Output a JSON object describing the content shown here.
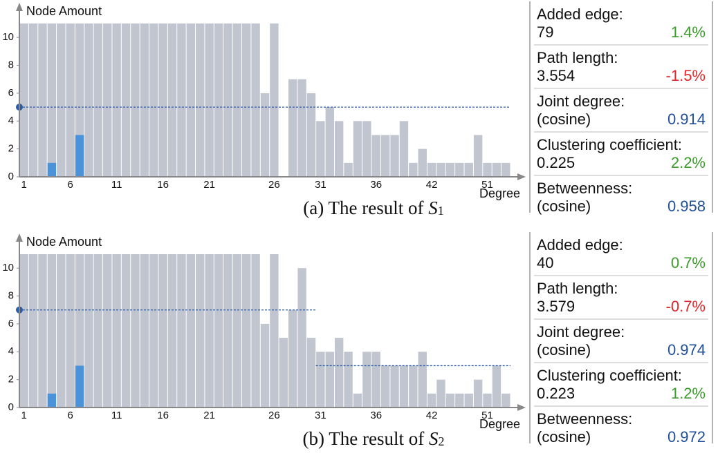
{
  "chart_data": [
    {
      "type": "bar",
      "y_label": "Node Amount",
      "x_label": "Degree",
      "caption": {
        "prefix": "(a) The result of ",
        "symbol": "S",
        "index": "1"
      },
      "categories": [
        "1",
        null,
        null,
        null,
        null,
        "6",
        null,
        null,
        null,
        null,
        "11",
        null,
        null,
        null,
        null,
        "16",
        null,
        null,
        null,
        null,
        "21",
        null,
        null,
        null,
        null,
        null,
        null,
        "26",
        null,
        null,
        null,
        null,
        "31",
        null,
        null,
        null,
        null,
        null,
        "36",
        null,
        null,
        null,
        null,
        null,
        "42",
        null,
        null,
        null,
        null,
        null,
        "51",
        null,
        null
      ],
      "series": [
        {
          "color": "#c1c5cf",
          "values": [
            11,
            11,
            11,
            11,
            11,
            11,
            11,
            11,
            11,
            11,
            11,
            11,
            11,
            11,
            11,
            11,
            11,
            11,
            11,
            11,
            11,
            11,
            11,
            11,
            11,
            11,
            6,
            11,
            0,
            7,
            7,
            6,
            4,
            5,
            4,
            1,
            4,
            4,
            3,
            3,
            3,
            4,
            1,
            2,
            1,
            1,
            1,
            1,
            1,
            3,
            1,
            1,
            1
          ]
        },
        {
          "color": "#4a92d9",
          "values": [
            null,
            null,
            null,
            1,
            null,
            null,
            3,
            null,
            null,
            null,
            null,
            null,
            null,
            null,
            null,
            null,
            null,
            null,
            null,
            null,
            null,
            null,
            null,
            null,
            null,
            null,
            null,
            null,
            null,
            null,
            null,
            null,
            null,
            null,
            null,
            null,
            null,
            null,
            null,
            null,
            null,
            null,
            null,
            null,
            null,
            null,
            null,
            null,
            null,
            null,
            null,
            null,
            null
          ]
        }
      ],
      "reference": {
        "color": "#2a5ca8",
        "values": [
          5,
          5,
          5,
          5,
          5,
          5,
          5,
          5,
          5,
          5,
          5,
          5,
          5,
          5,
          5,
          5,
          5,
          5,
          5,
          5,
          5,
          5,
          5,
          5,
          5,
          5,
          5,
          5,
          5,
          5,
          5,
          5,
          5,
          5,
          5,
          5,
          5,
          5,
          5,
          5,
          5,
          5,
          5,
          5,
          5,
          5,
          5,
          5,
          5,
          5,
          5,
          5,
          5
        ]
      },
      "ylim": [
        0,
        11
      ],
      "yticks": [
        0,
        2,
        4,
        6,
        8,
        10
      ],
      "metrics": [
        {
          "label": "Added edge:",
          "value": "79",
          "change": "1.4%",
          "color": "#3a9a2a"
        },
        {
          "label": "Path length:",
          "value": "3.554",
          "change": "-1.5%",
          "color": "#e0262a"
        },
        {
          "label": "Joint degree:",
          "value": "(cosine)",
          "change": "0.914",
          "color": "#1f4e9a"
        },
        {
          "label": "Clustering coefficient:",
          "value": "0.225",
          "change": "2.2%",
          "color": "#3a9a2a"
        },
        {
          "label": "Betweenness:",
          "value": "(cosine)",
          "change": "0.958",
          "color": "#1f4e9a"
        }
      ]
    },
    {
      "type": "bar",
      "y_label": "Node Amount",
      "x_label": "Degree",
      "caption": {
        "prefix": "(b) The result of ",
        "symbol": "S",
        "index": "2"
      },
      "categories": [
        "1",
        null,
        null,
        null,
        null,
        "6",
        null,
        null,
        null,
        null,
        "11",
        null,
        null,
        null,
        null,
        "16",
        null,
        null,
        null,
        null,
        "21",
        null,
        null,
        null,
        null,
        null,
        null,
        "26",
        null,
        null,
        null,
        null,
        "31",
        null,
        null,
        null,
        null,
        null,
        "36",
        null,
        null,
        null,
        null,
        null,
        "42",
        null,
        null,
        null,
        null,
        null,
        "51",
        null,
        null
      ],
      "series": [
        {
          "color": "#c1c5cf",
          "values": [
            11,
            11,
            11,
            11,
            11,
            11,
            11,
            11,
            11,
            11,
            11,
            11,
            11,
            11,
            11,
            11,
            11,
            11,
            11,
            11,
            11,
            11,
            11,
            11,
            11,
            11,
            6,
            11,
            5,
            7,
            10,
            5,
            4,
            4,
            5,
            4,
            1,
            4,
            4,
            3,
            3,
            3,
            3,
            4,
            1,
            2,
            1,
            1,
            1,
            2,
            1,
            3,
            1
          ]
        },
        {
          "color": "#4a92d9",
          "values": [
            null,
            null,
            null,
            1,
            null,
            null,
            3,
            null,
            null,
            null,
            null,
            null,
            null,
            null,
            null,
            null,
            null,
            null,
            null,
            null,
            null,
            null,
            null,
            null,
            null,
            null,
            null,
            null,
            null,
            null,
            null,
            null,
            null,
            null,
            null,
            null,
            null,
            null,
            null,
            null,
            null,
            null,
            null,
            null,
            null,
            null,
            null,
            null,
            null,
            null,
            null,
            null,
            null
          ]
        }
      ],
      "reference": {
        "color": "#2a5ca8",
        "values": [
          7,
          7,
          7,
          7,
          7,
          7,
          7,
          7,
          7,
          7,
          7,
          7,
          7,
          7,
          7,
          7,
          7,
          7,
          7,
          7,
          7,
          7,
          7,
          7,
          7,
          7,
          7,
          7,
          7,
          7,
          7,
          7,
          3,
          3,
          3,
          3,
          3,
          3,
          3,
          3,
          3,
          3,
          3,
          3,
          3,
          3,
          3,
          3,
          3,
          3,
          3,
          3,
          3
        ]
      },
      "ylim": [
        0,
        11
      ],
      "yticks": [
        0,
        2,
        4,
        6,
        8,
        10
      ],
      "metrics": [
        {
          "label": "Added edge:",
          "value": "40",
          "change": "0.7%",
          "color": "#3a9a2a"
        },
        {
          "label": "Path length:",
          "value": "3.579",
          "change": "-0.7%",
          "color": "#e0262a"
        },
        {
          "label": "Joint degree:",
          "value": "(cosine)",
          "change": "0.974",
          "color": "#1f4e9a"
        },
        {
          "label": "Clustering coefficient:",
          "value": "0.223",
          "change": "1.2%",
          "color": "#3a9a2a"
        },
        {
          "label": "Betweenness:",
          "value": "(cosine)",
          "change": "0.972",
          "color": "#1f4e9a"
        }
      ]
    }
  ]
}
